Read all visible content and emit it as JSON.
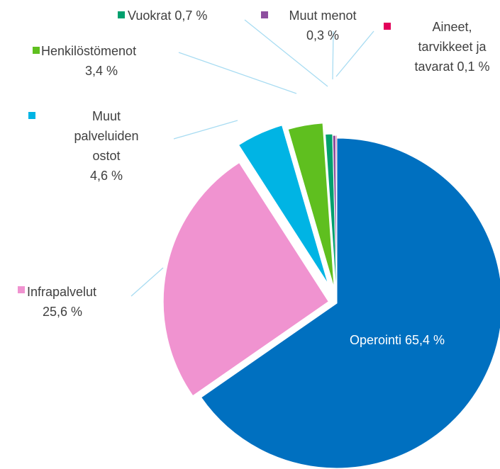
{
  "chart_data": {
    "type": "pie",
    "categories": [
      "Operointi",
      "Infrapalvelut",
      "Muut palveluiden ostot",
      "Henkilöstömenot",
      "Vuokrat",
      "Muut menot",
      "Aineet, tarvikkeet ja tavarat"
    ],
    "values": [
      65.4,
      25.6,
      4.6,
      3.4,
      0.7,
      0.3,
      0.1
    ],
    "value_labels": [
      "65,4 %",
      "25,6 %",
      "4,6 %",
      "3,4 %",
      "0,7 %",
      "0,3 %",
      "0,1 %"
    ],
    "colors": [
      "#0070c0",
      "#f093d0",
      "#00b4e4",
      "#5fbf1f",
      "#00a06e",
      "#8e4f9f",
      "#e2005a"
    ]
  }
}
